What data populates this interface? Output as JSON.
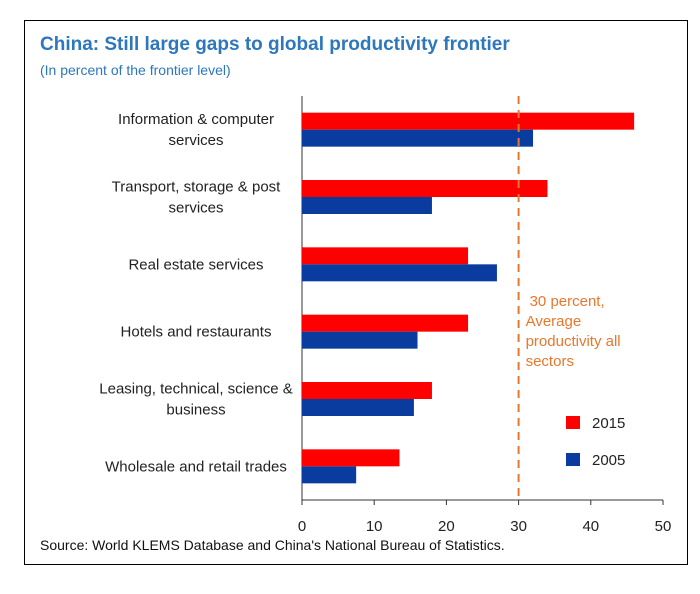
{
  "header": {
    "title": "China: Still large gaps to global productivity frontier",
    "subtitle": "(In percent of the frontier level)"
  },
  "footer": {
    "source": "Source: World KLEMS Database and China's National Bureau of Statistics."
  },
  "colors": {
    "series_2015": "#ff0000",
    "series_2005": "#0a3ca0",
    "reference_line": "#e8772e",
    "title": "#2e77bc"
  },
  "chart_data": {
    "type": "bar",
    "orientation": "horizontal",
    "title": "China: Still large gaps to global productivity frontier",
    "subtitle": "(In percent of the frontier level)",
    "categories": [
      [
        "Information & computer",
        "services"
      ],
      [
        "Transport, storage & post",
        "services"
      ],
      [
        "Real estate services"
      ],
      [
        "Hotels and restaurants"
      ],
      [
        "Leasing, technical, science &",
        "business"
      ],
      [
        "Wholesale and retail trades"
      ]
    ],
    "series": [
      {
        "name": "2015",
        "color": "#ff0000",
        "values": [
          46,
          34,
          23,
          23,
          18,
          13.5
        ]
      },
      {
        "name": "2005",
        "color": "#0a3ca0",
        "values": [
          32,
          18,
          27,
          16,
          15.5,
          7.5
        ]
      }
    ],
    "xlim": [
      0,
      50
    ],
    "xticks": [
      0,
      10,
      20,
      30,
      40,
      50
    ],
    "reference_line": {
      "value": 30,
      "label": [
        "30 percent,",
        "Average",
        "productivity all",
        "sectors"
      ]
    },
    "legend": {
      "position": "bottom-right",
      "entries": [
        "2015",
        "2005"
      ]
    },
    "xlabel": "",
    "ylabel": "",
    "grid": false,
    "source": "Source: World KLEMS Database and China's National Bureau of Statistics."
  }
}
